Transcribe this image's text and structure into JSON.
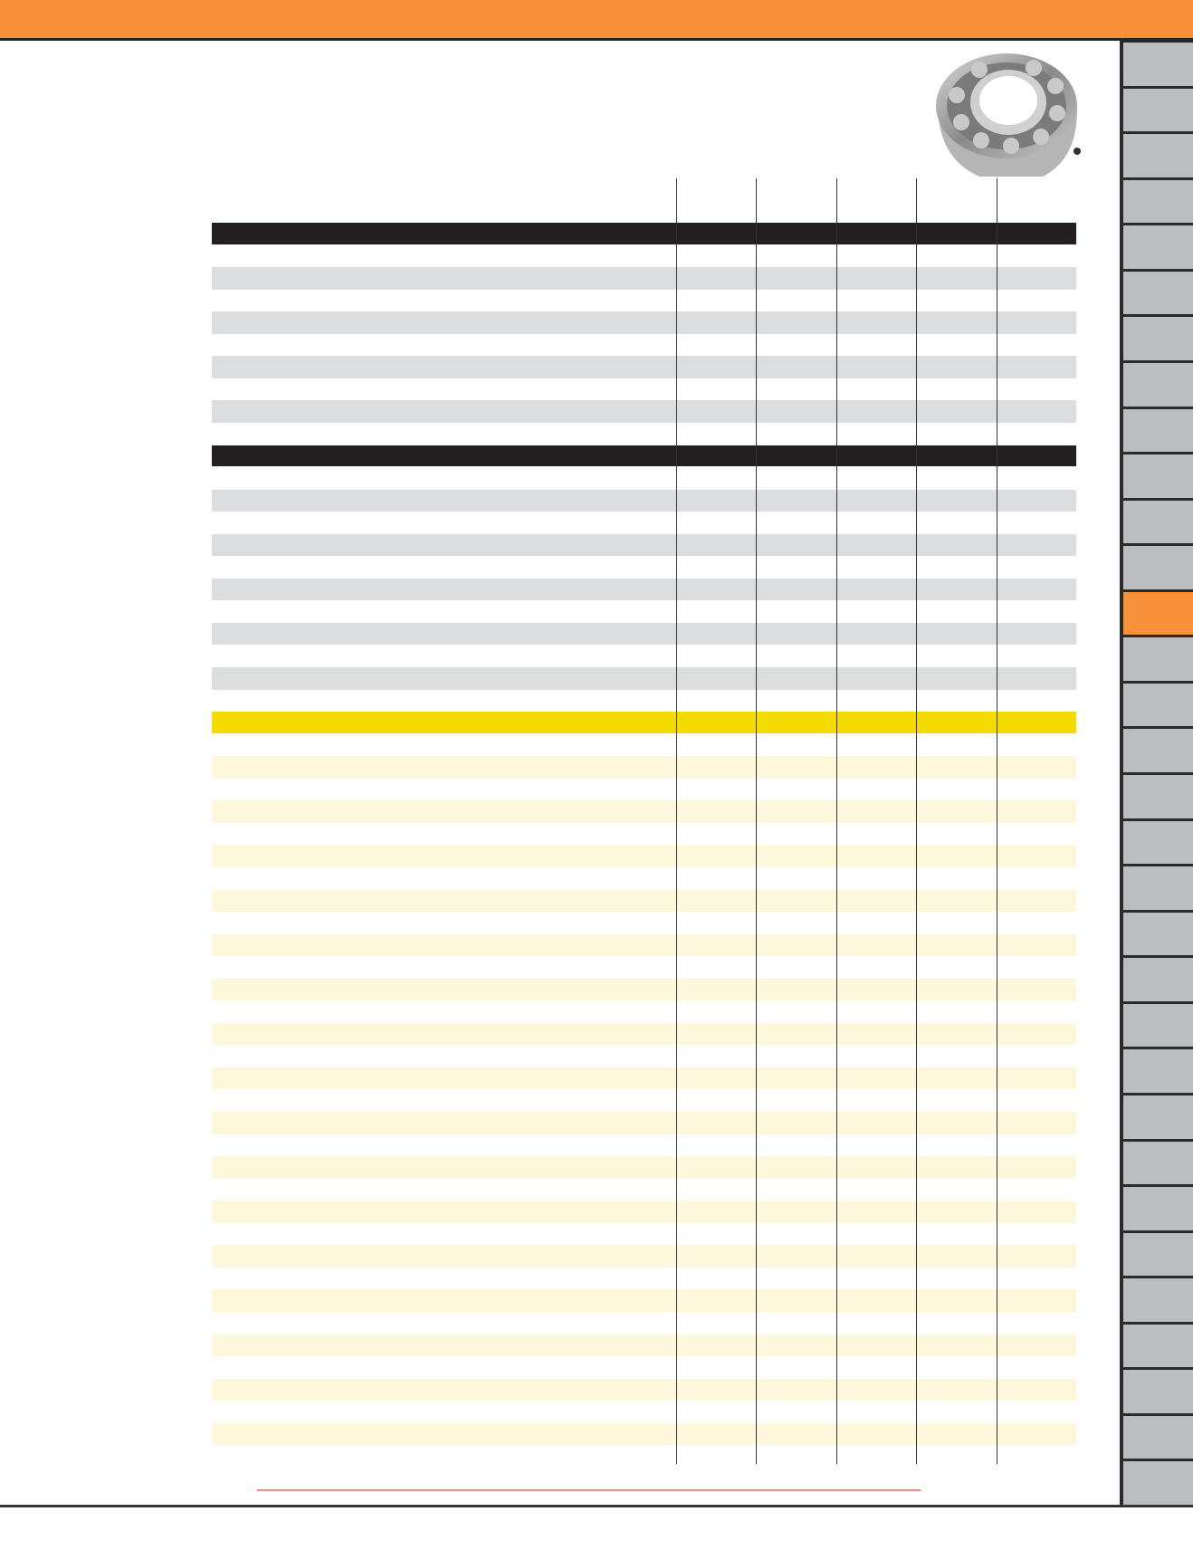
{
  "colors": {
    "brand_orange": "#f7923a",
    "sidebar_gray": "#bcbdc0",
    "section_header_dark": "#231f20",
    "section_header_yellow": "#f5dc00",
    "stripe_gray": "#dcdddf",
    "stripe_yellow": "#fdf8dc",
    "footer_rule": "#e88a8a"
  },
  "sidebar": {
    "tab_count": 32,
    "active_index": 12
  },
  "table": {
    "column_count": 6,
    "sections": [
      {
        "header_color": "#231f20",
        "stripe_color": "#dcdddf",
        "row_count": 9
      },
      {
        "header_color": "#231f20",
        "stripe_color": "#dcdddf",
        "row_count": 11
      },
      {
        "header_color": "#f5dc00",
        "stripe_color": "#fdf8dc",
        "row_count": 33
      }
    ]
  },
  "product_image": {
    "icon": "ball-bearing-photo"
  }
}
